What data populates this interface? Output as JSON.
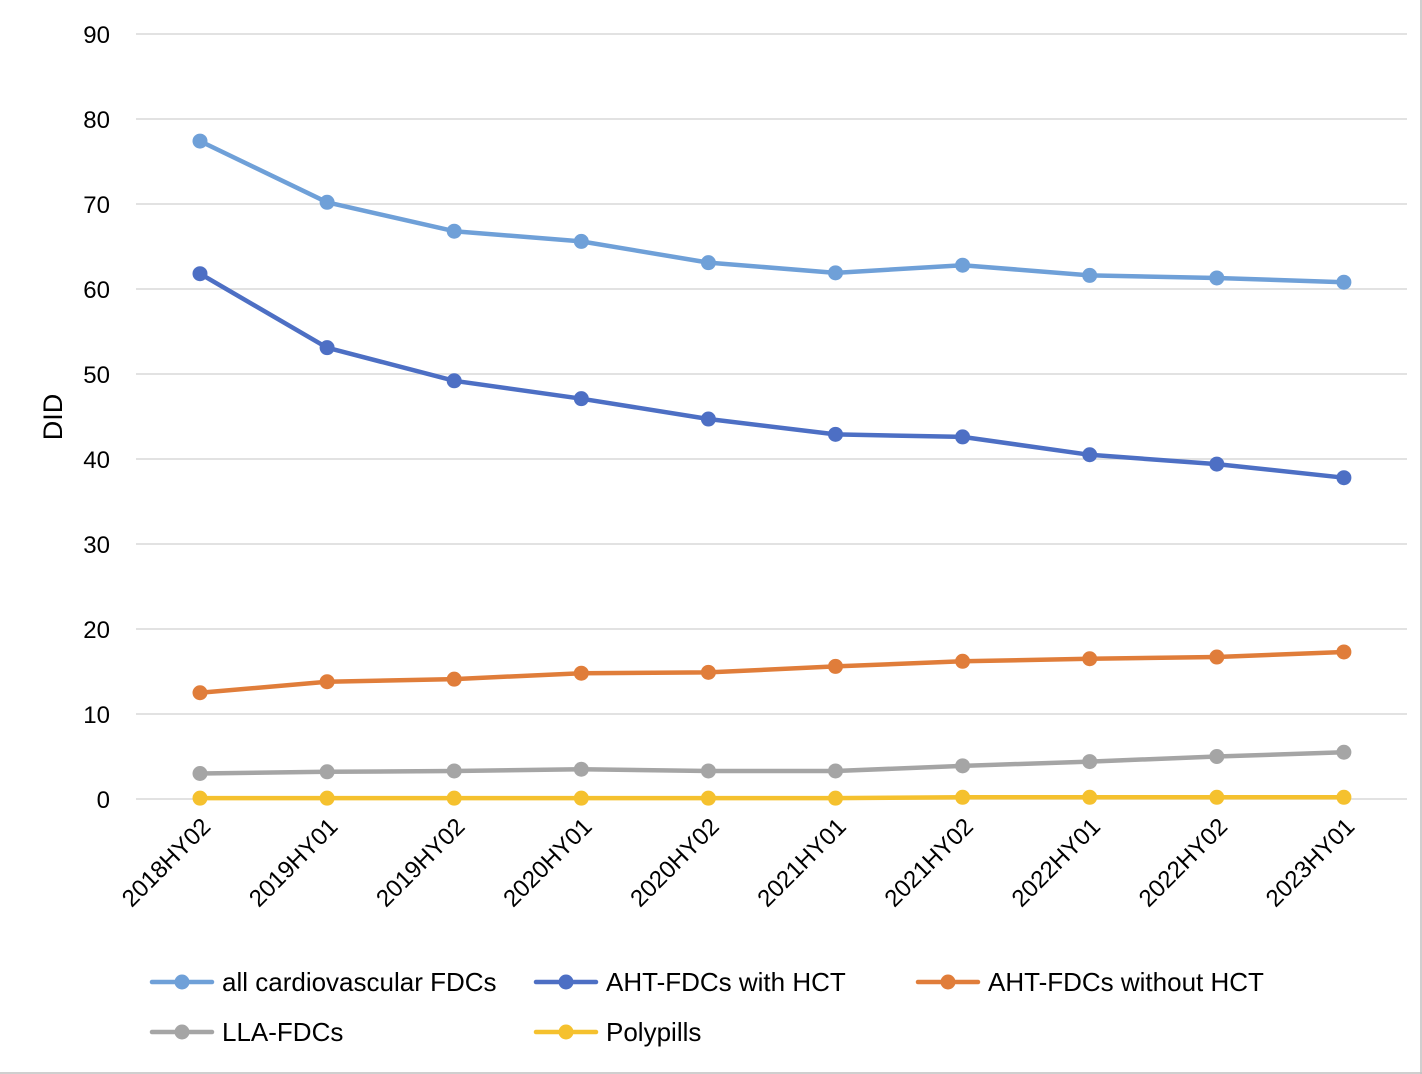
{
  "chart_data": {
    "type": "line",
    "title": "",
    "xlabel": "",
    "ylabel": "DID",
    "ylim": [
      0,
      90
    ],
    "yticks": [
      "0",
      "10",
      "20",
      "30",
      "40",
      "50",
      "60",
      "70",
      "80",
      "90"
    ],
    "grid": true,
    "legend_position": "bottom",
    "categories": [
      "2018HY02",
      "2019HY01",
      "2019HY02",
      "2020HY01",
      "2020HY02",
      "2021HY01",
      "2021HY02",
      "2022HY01",
      "2022HY02",
      "2023HY01"
    ],
    "series": [
      {
        "name": "all cardiovascular FDCs",
        "color": "#6fa0d8",
        "values": [
          77.4,
          70.2,
          66.8,
          65.6,
          63.1,
          61.9,
          62.8,
          61.6,
          61.3,
          60.8
        ]
      },
      {
        "name": "AHT-FDCs with HCT",
        "color": "#4d6fc4",
        "values": [
          61.8,
          53.1,
          49.2,
          47.1,
          44.7,
          42.9,
          42.6,
          40.5,
          39.4,
          37.8
        ]
      },
      {
        "name": "AHT-FDCs without HCT",
        "color": "#e07d3a",
        "values": [
          12.5,
          13.8,
          14.1,
          14.8,
          14.9,
          15.6,
          16.2,
          16.5,
          16.7,
          17.3
        ]
      },
      {
        "name": "LLA-FDCs",
        "color": "#a5a5a5",
        "values": [
          3.0,
          3.2,
          3.3,
          3.5,
          3.3,
          3.3,
          3.9,
          4.4,
          5.0,
          5.5
        ]
      },
      {
        "name": "Polypills",
        "color": "#f5c12e",
        "values": [
          0.1,
          0.1,
          0.1,
          0.1,
          0.1,
          0.1,
          0.2,
          0.2,
          0.2,
          0.2
        ]
      }
    ]
  }
}
